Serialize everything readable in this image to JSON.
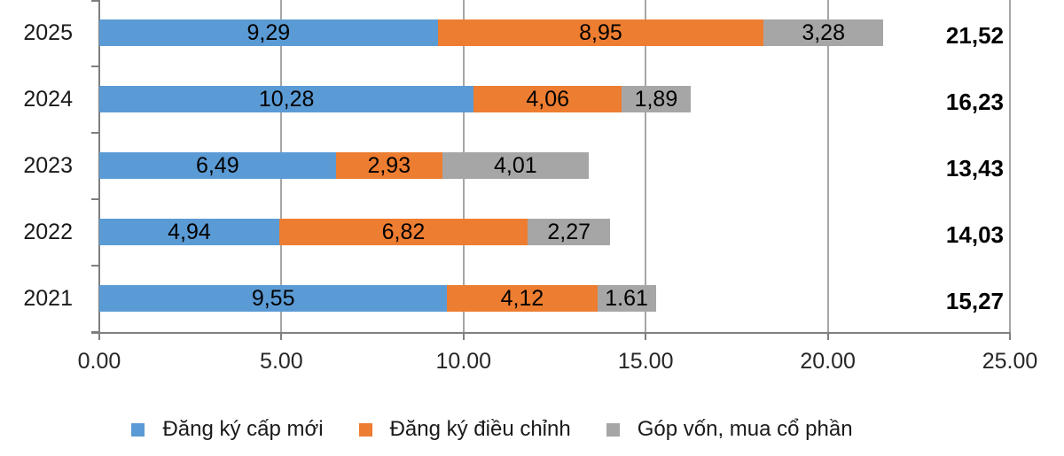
{
  "chart_data": {
    "type": "bar",
    "orientation": "horizontal",
    "stacked": true,
    "title": "",
    "categories": [
      "2025",
      "2024",
      "2023",
      "2022",
      "2021"
    ],
    "series": [
      {
        "name": "Đăng ký cấp mới",
        "color": "#5B9BD5",
        "values": [
          9.29,
          10.28,
          6.49,
          4.94,
          9.55
        ],
        "labels": [
          "9,29",
          "10,28",
          "6,49",
          "4,94",
          "9,55"
        ]
      },
      {
        "name": "Đăng ký điều chỉnh",
        "color": "#ED7D31",
        "values": [
          8.95,
          4.06,
          2.93,
          6.82,
          4.12
        ],
        "labels": [
          "8,95",
          "4,06",
          "2,93",
          "6,82",
          "4,12"
        ]
      },
      {
        "name": "Góp vốn, mua cổ phần",
        "color": "#A6A6A6",
        "values": [
          3.28,
          1.89,
          4.01,
          2.27,
          1.61
        ],
        "labels": [
          "3,28",
          "1,89",
          "4,01",
          "2,27",
          "1.61"
        ]
      }
    ],
    "totals": [
      "21,52",
      "16,23",
      "13,43",
      "14,03",
      "15,27"
    ],
    "x_ticks": [
      "0.00",
      "5.00",
      "10.00",
      "15.00",
      "20.00",
      "25.00"
    ],
    "x_tick_values": [
      0,
      5,
      10,
      15,
      20,
      25
    ],
    "xlim": [
      0,
      25
    ],
    "grid": true,
    "gridline_color": "#A6A6A6",
    "axis_color": "#7F7F7F",
    "legend_position": "bottom"
  }
}
